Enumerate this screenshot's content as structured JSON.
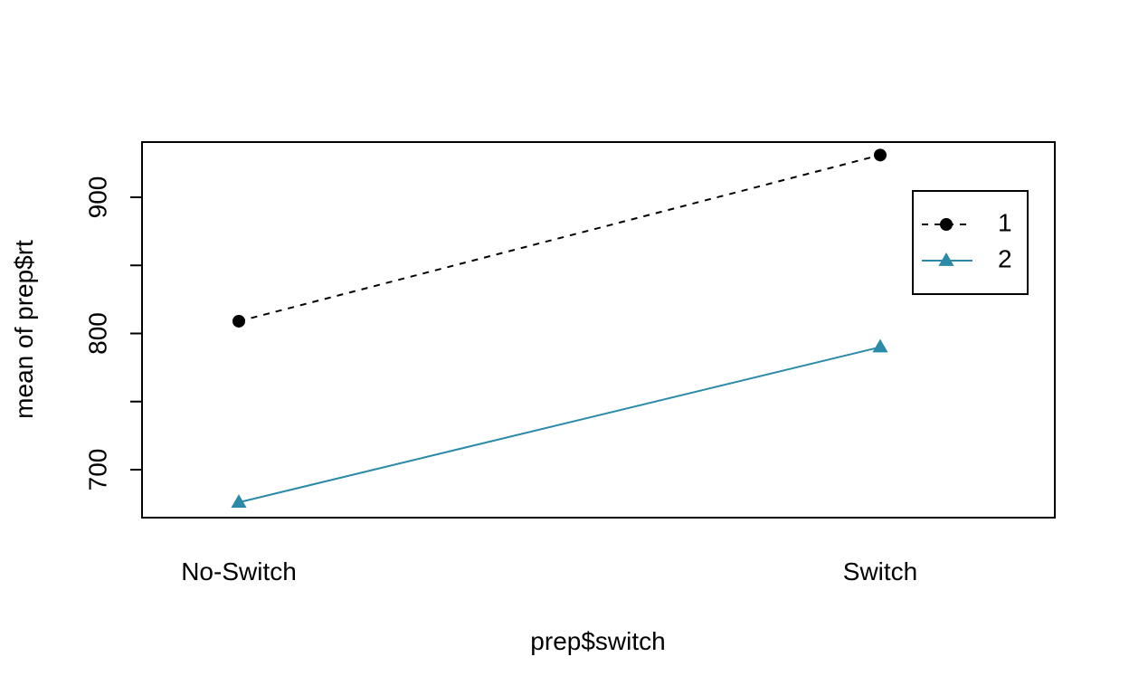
{
  "chart_data": {
    "type": "line",
    "title": "",
    "xlabel": "prep$switch",
    "ylabel": "mean of  prep$rt",
    "categories": [
      "No-Switch",
      "Switch"
    ],
    "yticks": [
      700,
      800,
      900
    ],
    "ylim": [
      664,
      940
    ],
    "grid": false,
    "legend_position": "top-right",
    "series": [
      {
        "name": "1",
        "values": [
          809,
          931
        ],
        "color": "#000000",
        "line_style": "dashed",
        "marker": "circle"
      },
      {
        "name": "2",
        "values": [
          676,
          790
        ],
        "color": "#2A8AA8",
        "line_style": "solid",
        "marker": "triangle"
      }
    ]
  }
}
